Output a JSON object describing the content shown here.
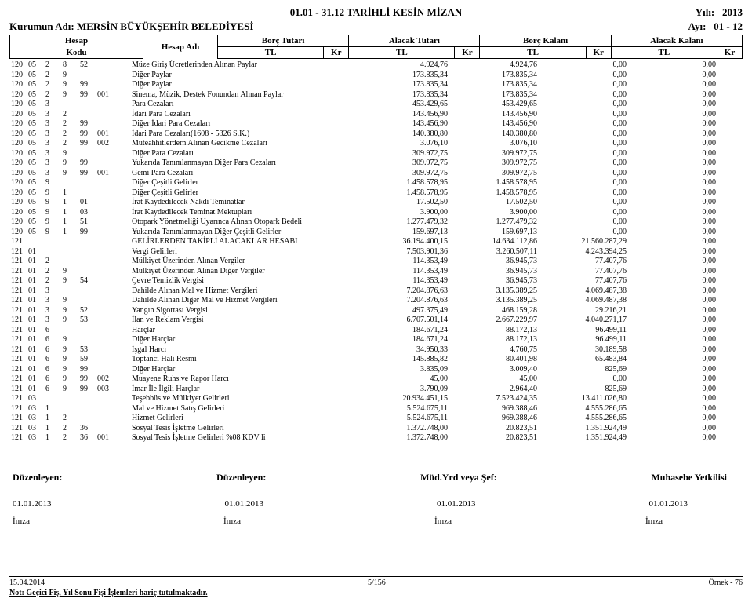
{
  "title": "01.01 - 31.12 TARİHLİ KESİN MİZAN",
  "year_label": "Yılı:",
  "year": "2013",
  "kurum_label": "Kurumun Adı:",
  "kurum": "MERSİN BÜYÜKŞEHİR BELEDİYESİ",
  "ayi_label": "Ayı:",
  "ayi": "01 - 12",
  "hdr": {
    "hesap": "Hesap",
    "kodu": "Kodu",
    "hesap_adi": "Hesap Adı",
    "borc_tutari": "Borç Tutarı",
    "alacak_tutari": "Alacak Tutarı",
    "borc_kalani": "Borç Kalanı",
    "alacak_kalani": "Alacak Kalanı",
    "tl": "TL",
    "kr": "Kr"
  },
  "rows": [
    {
      "c": [
        "120",
        "05",
        "2",
        "8",
        "52",
        "",
        ""
      ],
      "d": "Müze Giriş Ücretlerinden Alınan Paylar",
      "v": [
        "4.924,76",
        "4.924,76",
        "0,00",
        "0,00"
      ]
    },
    {
      "c": [
        "120",
        "05",
        "2",
        "9",
        "",
        "",
        ""
      ],
      "d": "Diğer Paylar",
      "v": [
        "173.835,34",
        "173.835,34",
        "0,00",
        "0,00"
      ]
    },
    {
      "c": [
        "120",
        "05",
        "2",
        "9",
        "99",
        "",
        ""
      ],
      "d": "Diğer Paylar",
      "v": [
        "173.835,34",
        "173.835,34",
        "0,00",
        "0,00"
      ]
    },
    {
      "c": [
        "120",
        "05",
        "2",
        "9",
        "99",
        "001",
        ""
      ],
      "d": "Sinema, Müzik, Destek Fonundan Alınan Paylar",
      "v": [
        "173.835,34",
        "173.835,34",
        "0,00",
        "0,00"
      ]
    },
    {
      "c": [
        "120",
        "05",
        "3",
        "",
        "",
        "",
        ""
      ],
      "d": "Para Cezaları",
      "v": [
        "453.429,65",
        "453.429,65",
        "0,00",
        "0,00"
      ]
    },
    {
      "c": [
        "120",
        "05",
        "3",
        "2",
        "",
        "",
        ""
      ],
      "d": "İdari Para Cezaları",
      "v": [
        "143.456,90",
        "143.456,90",
        "0,00",
        "0,00"
      ]
    },
    {
      "c": [
        "120",
        "05",
        "3",
        "2",
        "99",
        "",
        ""
      ],
      "d": "Diğer İdari Para Cezaları",
      "v": [
        "143.456,90",
        "143.456,90",
        "0,00",
        "0,00"
      ]
    },
    {
      "c": [
        "120",
        "05",
        "3",
        "2",
        "99",
        "001",
        ""
      ],
      "d": "İdari Para Cezaları(1608 - 5326 S.K.)",
      "v": [
        "140.380,80",
        "140.380,80",
        "0,00",
        "0,00"
      ]
    },
    {
      "c": [
        "120",
        "05",
        "3",
        "2",
        "99",
        "002",
        ""
      ],
      "d": "Müteahhitlerdern Alınan Gecikme Cezaları",
      "v": [
        "3.076,10",
        "3.076,10",
        "0,00",
        "0,00"
      ]
    },
    {
      "c": [
        "120",
        "05",
        "3",
        "9",
        "",
        "",
        ""
      ],
      "d": "Diğer Para Cezaları",
      "v": [
        "309.972,75",
        "309.972,75",
        "0,00",
        "0,00"
      ]
    },
    {
      "c": [
        "120",
        "05",
        "3",
        "9",
        "99",
        "",
        ""
      ],
      "d": "Yukarıda Tanımlanmayan Diğer Para Cezaları",
      "v": [
        "309.972,75",
        "309.972,75",
        "0,00",
        "0,00"
      ]
    },
    {
      "c": [
        "120",
        "05",
        "3",
        "9",
        "99",
        "001",
        ""
      ],
      "d": "Gemi Para Cezaları",
      "v": [
        "309.972,75",
        "309.972,75",
        "0,00",
        "0,00"
      ]
    },
    {
      "c": [
        "120",
        "05",
        "9",
        "",
        "",
        "",
        ""
      ],
      "d": "Diğer Çeşitli Gelirler",
      "v": [
        "1.458.578,95",
        "1.458.578,95",
        "0,00",
        "0,00"
      ]
    },
    {
      "c": [
        "120",
        "05",
        "9",
        "1",
        "",
        "",
        ""
      ],
      "d": "Diğer Çeşitli Gelirler",
      "v": [
        "1.458.578,95",
        "1.458.578,95",
        "0,00",
        "0,00"
      ]
    },
    {
      "c": [
        "120",
        "05",
        "9",
        "1",
        "01",
        "",
        ""
      ],
      "d": "İrat Kaydedilecek Nakdi Teminatlar",
      "v": [
        "17.502,50",
        "17.502,50",
        "0,00",
        "0,00"
      ]
    },
    {
      "c": [
        "120",
        "05",
        "9",
        "1",
        "03",
        "",
        ""
      ],
      "d": "İrat Kaydedilecek Teminat Mektupları",
      "v": [
        "3.900,00",
        "3.900,00",
        "0,00",
        "0,00"
      ]
    },
    {
      "c": [
        "120",
        "05",
        "9",
        "1",
        "51",
        "",
        ""
      ],
      "d": "Otopark Yönetmeliği Uyarınca Alınan Otopark Bedeli",
      "v": [
        "1.277.479,32",
        "1.277.479,32",
        "0,00",
        "0,00"
      ]
    },
    {
      "c": [
        "120",
        "05",
        "9",
        "1",
        "99",
        "",
        ""
      ],
      "d": "Yukarıda Tanımlanmayan Diğer Çeşitli Gelirler",
      "v": [
        "159.697,13",
        "159.697,13",
        "0,00",
        "0,00"
      ]
    },
    {
      "c": [
        "121",
        "",
        "",
        "",
        "",
        "",
        ""
      ],
      "d": "GELİRLERDEN TAKİPLİ ALACAKLAR HESABI",
      "v": [
        "36.194.400,15",
        "14.634.112,86",
        "21.560.287,29",
        "0,00"
      ]
    },
    {
      "c": [
        "121",
        "01",
        "",
        "",
        "",
        "",
        ""
      ],
      "d": "Vergi Gelirleri",
      "v": [
        "7.503.901,36",
        "3.260.507,11",
        "4.243.394,25",
        "0,00"
      ]
    },
    {
      "c": [
        "121",
        "01",
        "2",
        "",
        "",
        "",
        ""
      ],
      "d": "Mülkiyet Üzerinden Alınan Vergiler",
      "v": [
        "114.353,49",
        "36.945,73",
        "77.407,76",
        "0,00"
      ]
    },
    {
      "c": [
        "121",
        "01",
        "2",
        "9",
        "",
        "",
        ""
      ],
      "d": "Mülkiyet Üzerinden Alınan Diğer Vergiler",
      "v": [
        "114.353,49",
        "36.945,73",
        "77.407,76",
        "0,00"
      ]
    },
    {
      "c": [
        "121",
        "01",
        "2",
        "9",
        "54",
        "",
        ""
      ],
      "d": "Çevre Temizlik Vergisi",
      "v": [
        "114.353,49",
        "36.945,73",
        "77.407,76",
        "0,00"
      ]
    },
    {
      "c": [
        "121",
        "01",
        "3",
        "",
        "",
        "",
        ""
      ],
      "d": "Dahilde Alınan Mal ve Hizmet Vergileri",
      "v": [
        "7.204.876,63",
        "3.135.389,25",
        "4.069.487,38",
        "0,00"
      ]
    },
    {
      "c": [
        "121",
        "01",
        "3",
        "9",
        "",
        "",
        ""
      ],
      "d": "Dahilde Alınan Diğer Mal ve Hizmet Vergileri",
      "v": [
        "7.204.876,63",
        "3.135.389,25",
        "4.069.487,38",
        "0,00"
      ]
    },
    {
      "c": [
        "121",
        "01",
        "3",
        "9",
        "52",
        "",
        ""
      ],
      "d": "Yangın Sigortası Vergisi",
      "v": [
        "497.375,49",
        "468.159,28",
        "29.216,21",
        "0,00"
      ]
    },
    {
      "c": [
        "121",
        "01",
        "3",
        "9",
        "53",
        "",
        ""
      ],
      "d": "İlan ve Reklam Vergisi",
      "v": [
        "6.707.501,14",
        "2.667.229,97",
        "4.040.271,17",
        "0,00"
      ]
    },
    {
      "c": [
        "121",
        "01",
        "6",
        "",
        "",
        "",
        ""
      ],
      "d": "Harçlar",
      "v": [
        "184.671,24",
        "88.172,13",
        "96.499,11",
        "0,00"
      ]
    },
    {
      "c": [
        "121",
        "01",
        "6",
        "9",
        "",
        "",
        ""
      ],
      "d": "Diğer Harçlar",
      "v": [
        "184.671,24",
        "88.172,13",
        "96.499,11",
        "0,00"
      ]
    },
    {
      "c": [
        "121",
        "01",
        "6",
        "9",
        "53",
        "",
        ""
      ],
      "d": "İşgal Harcı",
      "v": [
        "34.950,33",
        "4.760,75",
        "30.189,58",
        "0,00"
      ]
    },
    {
      "c": [
        "121",
        "01",
        "6",
        "9",
        "59",
        "",
        ""
      ],
      "d": "Toptancı Hali Resmi",
      "v": [
        "145.885,82",
        "80.401,98",
        "65.483,84",
        "0,00"
      ]
    },
    {
      "c": [
        "121",
        "01",
        "6",
        "9",
        "99",
        "",
        ""
      ],
      "d": "Diğer Harçlar",
      "v": [
        "3.835,09",
        "3.009,40",
        "825,69",
        "0,00"
      ]
    },
    {
      "c": [
        "121",
        "01",
        "6",
        "9",
        "99",
        "002",
        ""
      ],
      "d": "Muayene Ruhs.ve Rapor Harcı",
      "v": [
        "45,00",
        "45,00",
        "0,00",
        "0,00"
      ]
    },
    {
      "c": [
        "121",
        "01",
        "6",
        "9",
        "99",
        "003",
        ""
      ],
      "d": "İmar İle İlgili Harçlar",
      "v": [
        "3.790,09",
        "2.964,40",
        "825,69",
        "0,00"
      ]
    },
    {
      "c": [
        "121",
        "03",
        "",
        "",
        "",
        "",
        ""
      ],
      "d": "Teşebbüs ve Mülkiyet Gelirleri",
      "v": [
        "20.934.451,15",
        "7.523.424,35",
        "13.411.026,80",
        "0,00"
      ]
    },
    {
      "c": [
        "121",
        "03",
        "1",
        "",
        "",
        "",
        ""
      ],
      "d": "Mal ve Hizmet Satış Gelirleri",
      "v": [
        "5.524.675,11",
        "969.388,46",
        "4.555.286,65",
        "0,00"
      ]
    },
    {
      "c": [
        "121",
        "03",
        "1",
        "2",
        "",
        "",
        ""
      ],
      "d": "Hizmet Gelirleri",
      "v": [
        "5.524.675,11",
        "969.388,46",
        "4.555.286,65",
        "0,00"
      ]
    },
    {
      "c": [
        "121",
        "03",
        "1",
        "2",
        "36",
        "",
        ""
      ],
      "d": "Sosyal Tesis İşletme Gelirleri",
      "v": [
        "1.372.748,00",
        "20.823,51",
        "1.351.924,49",
        "0,00"
      ]
    },
    {
      "c": [
        "121",
        "03",
        "1",
        "2",
        "36",
        "001",
        ""
      ],
      "d": "Sosyal Tesis İşletme Gelirleri %08 KDV li",
      "v": [
        "1.372.748,00",
        "20.823,51",
        "1.351.924,49",
        "0,00"
      ]
    }
  ],
  "sign": {
    "duzenleyen": "Düzenleyen:",
    "mud": "Müd.Yrd veya Şef:",
    "muhasebe": "Muhasebe Yetkilisi"
  },
  "date": "01.01.2013",
  "imza": "İmza",
  "footer": {
    "date": "15.04.2014",
    "page": "5/156",
    "ornek": "Örnek - 76",
    "note": "Not: Geçici Fiş, Yıl Sonu Fişi İşlemleri hariç tutulmaktadır."
  }
}
